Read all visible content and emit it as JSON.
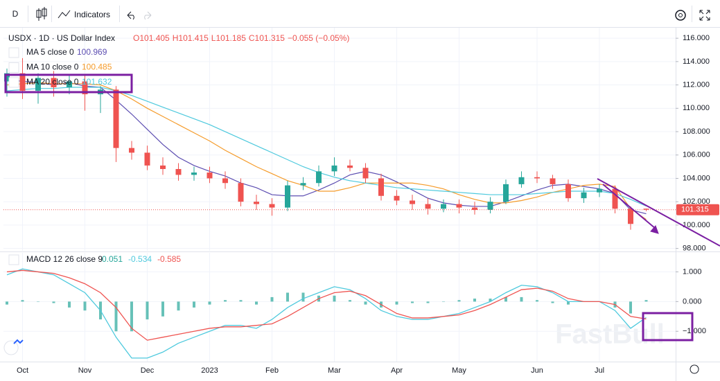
{
  "toolbar": {
    "interval": "D",
    "indicators": "Indicators"
  },
  "header": {
    "symbol": "USDX · 1D · US Dollar Index",
    "open_label": "O",
    "high_label": "H",
    "low_label": "L",
    "close_label": "C",
    "change": "−0.055 (−0.05%)"
  },
  "watermark": "FastBull",
  "chart_data": [
    {
      "type": "candlestick",
      "grid": true,
      "up_color": "#26a69a",
      "down_color": "#ef5350",
      "categories": [
        null,
        "Oct",
        null,
        null,
        null,
        "Nov",
        null,
        null,
        null,
        "Dec",
        null,
        null,
        null,
        "2023",
        null,
        null,
        null,
        "Feb",
        null,
        null,
        null,
        "Mar",
        null,
        null,
        null,
        "Apr",
        null,
        null,
        null,
        "May",
        null,
        null,
        null,
        null,
        "Jun",
        null,
        null,
        null,
        "Jul",
        null,
        null,
        null
      ],
      "open": [
        112.3,
        113.0,
        111.5,
        112.6,
        111.8,
        112.3,
        111.2,
        111.6,
        106.6,
        106.2,
        105.1,
        104.8,
        104.3,
        104.5,
        104.0,
        103.6,
        102.0,
        101.8,
        101.5,
        103.4,
        103.6,
        104.6,
        105.1,
        104.9,
        104.0,
        102.5,
        102.1,
        101.8,
        101.4,
        101.8,
        101.5,
        101.3,
        102.0,
        103.5,
        104.1,
        104.0,
        103.5,
        102.3,
        102.8,
        103.1,
        101.4,
        101.405
      ],
      "high": [
        113.4,
        114.3,
        113.0,
        113.2,
        112.8,
        112.8,
        111.9,
        111.9,
        107.2,
        106.8,
        105.8,
        105.3,
        105.0,
        105.0,
        104.6,
        104.0,
        102.6,
        102.3,
        103.8,
        104.1,
        105.1,
        105.8,
        105.6,
        105.3,
        104.4,
        103.0,
        102.6,
        102.3,
        102.2,
        102.2,
        102.0,
        102.4,
        103.9,
        104.6,
        104.6,
        104.3,
        103.9,
        103.2,
        103.5,
        103.4,
        101.6,
        101.415
      ],
      "low": [
        111.0,
        110.8,
        110.4,
        111.0,
        111.2,
        109.8,
        109.6,
        105.4,
        105.6,
        104.7,
        104.3,
        103.8,
        103.8,
        103.6,
        103.1,
        101.6,
        101.3,
        100.8,
        101.2,
        103.0,
        103.3,
        104.2,
        104.6,
        103.6,
        102.1,
        101.7,
        101.3,
        100.9,
        101.1,
        101.0,
        100.9,
        101.0,
        101.8,
        103.2,
        103.6,
        103.1,
        102.0,
        101.9,
        102.4,
        101.0,
        99.6,
        101.185
      ],
      "close": [
        113.0,
        111.5,
        112.6,
        111.8,
        112.3,
        111.2,
        111.6,
        106.6,
        106.2,
        105.1,
        104.8,
        104.3,
        104.5,
        104.0,
        103.6,
        102.0,
        101.8,
        101.5,
        103.4,
        103.6,
        104.6,
        105.1,
        104.9,
        104.0,
        102.5,
        102.1,
        101.8,
        101.4,
        101.8,
        101.5,
        101.3,
        102.0,
        103.5,
        104.1,
        104.0,
        103.5,
        102.3,
        102.8,
        103.1,
        101.4,
        100.1,
        101.315
      ],
      "series": [
        {
          "name": "MA 5 close 0",
          "color": "#5c4db1",
          "values": [
            112.5,
            112.3,
            112.2,
            112.0,
            112.2,
            111.9,
            111.8,
            110.7,
            109.5,
            108.2,
            106.9,
            105.8,
            105.1,
            104.6,
            104.2,
            103.6,
            103.2,
            102.6,
            102.5,
            102.5,
            103.0,
            103.6,
            104.3,
            104.6,
            104.3,
            103.7,
            103.0,
            102.3,
            101.9,
            101.7,
            101.6,
            101.6,
            102.0,
            102.5,
            103.0,
            103.4,
            103.5,
            103.3,
            103.1,
            102.7,
            101.3,
            100.969
          ]
        },
        {
          "name": "MA 10 close 0",
          "color": "#f59b2a",
          "values": [
            112.0,
            112.1,
            112.2,
            112.1,
            112.1,
            112.1,
            112.0,
            111.5,
            110.8,
            110.0,
            109.3,
            108.6,
            107.9,
            107.2,
            106.4,
            105.7,
            105.0,
            104.4,
            103.8,
            103.4,
            102.9,
            102.9,
            103.2,
            103.6,
            103.6,
            103.6,
            103.6,
            103.4,
            103.1,
            102.6,
            102.2,
            101.9,
            101.9,
            102.1,
            102.4,
            102.8,
            103.1,
            103.4,
            103.5,
            103.3,
            101.4,
            100.485
          ]
        },
        {
          "name": "MA 20 close 0",
          "color": "#4dc9dd",
          "values": [
            111.5,
            111.6,
            111.7,
            111.7,
            111.8,
            111.8,
            111.8,
            111.5,
            111.1,
            110.6,
            110.1,
            109.6,
            109.1,
            108.6,
            108.0,
            107.4,
            106.8,
            106.2,
            105.6,
            105.0,
            104.5,
            104.1,
            103.8,
            103.6,
            103.4,
            103.2,
            103.1,
            103.0,
            102.9,
            102.8,
            102.7,
            102.6,
            102.6,
            102.6,
            102.7,
            102.8,
            102.9,
            102.9,
            102.9,
            102.7,
            102.2,
            101.632
          ]
        }
      ],
      "ylim": [
        97.8,
        116.9
      ],
      "yticks": [
        {
          "value": 98,
          "label": "98.000"
        },
        {
          "value": 100,
          "label": "100.000"
        },
        {
          "value": 102,
          "label": "102.000"
        },
        {
          "value": 104,
          "label": "104.000"
        },
        {
          "value": 106,
          "label": "106.000"
        },
        {
          "value": 108,
          "label": "108.000"
        },
        {
          "value": 110,
          "label": "110.000"
        },
        {
          "value": 112,
          "label": "112.000"
        },
        {
          "value": 114,
          "label": "114.000"
        },
        {
          "value": 116,
          "label": "116.000"
        }
      ]
    },
    {
      "type": "macd",
      "title": "MACD 12 26 close 9",
      "grid": true,
      "series": [
        {
          "kind": "bar",
          "color": "#26a69a",
          "values": [
            -0.1,
            0.05,
            0,
            -0.05,
            -0.2,
            -0.3,
            -0.6,
            -1.0,
            -1.0,
            -0.6,
            -0.5,
            -0.3,
            -0.2,
            -0.1,
            0.05,
            0.05,
            -0.1,
            0.15,
            0.3,
            0.3,
            0.2,
            0.2,
            0.05,
            -0.1,
            -0.2,
            -0.1,
            -0.05,
            -0.05,
            0,
            0.05,
            0.1,
            0.1,
            0.15,
            0.15,
            0.05,
            -0.05,
            -0.1,
            0,
            0,
            -0.2,
            -0.4,
            0.051
          ]
        },
        {
          "kind": "line",
          "color": "#4dc9dd",
          "values": [
            0.9,
            1.1,
            1.0,
            0.9,
            0.6,
            0.3,
            -0.3,
            -1.2,
            -1.9,
            -1.9,
            -1.7,
            -1.4,
            -1.2,
            -1.0,
            -0.8,
            -0.8,
            -0.9,
            -0.6,
            -0.2,
            0.1,
            0.3,
            0.5,
            0.4,
            0.1,
            -0.3,
            -0.5,
            -0.6,
            -0.6,
            -0.5,
            -0.4,
            -0.2,
            0.0,
            0.3,
            0.55,
            0.5,
            0.3,
            0.0,
            0.0,
            0.0,
            -0.3,
            -0.9,
            -0.534
          ]
        },
        {
          "kind": "line",
          "color": "#ef5350",
          "values": [
            1.0,
            1.05,
            1.0,
            0.95,
            0.8,
            0.6,
            0.3,
            -0.2,
            -0.9,
            -1.3,
            -1.2,
            -1.1,
            -1.0,
            -0.9,
            -0.85,
            -0.85,
            -0.8,
            -0.75,
            -0.5,
            -0.2,
            0.1,
            0.3,
            0.35,
            0.2,
            -0.1,
            -0.4,
            -0.55,
            -0.55,
            -0.5,
            -0.45,
            -0.3,
            -0.1,
            0.15,
            0.4,
            0.45,
            0.35,
            0.1,
            0.0,
            0.0,
            -0.1,
            -0.5,
            -0.585
          ]
        }
      ],
      "ylim": [
        -2.02,
        1.64
      ],
      "yticks": [
        {
          "value": -1,
          "label": "−1.000"
        },
        {
          "value": 0,
          "label": "0.000"
        },
        {
          "value": 1,
          "label": "1.000"
        }
      ]
    }
  ]
}
